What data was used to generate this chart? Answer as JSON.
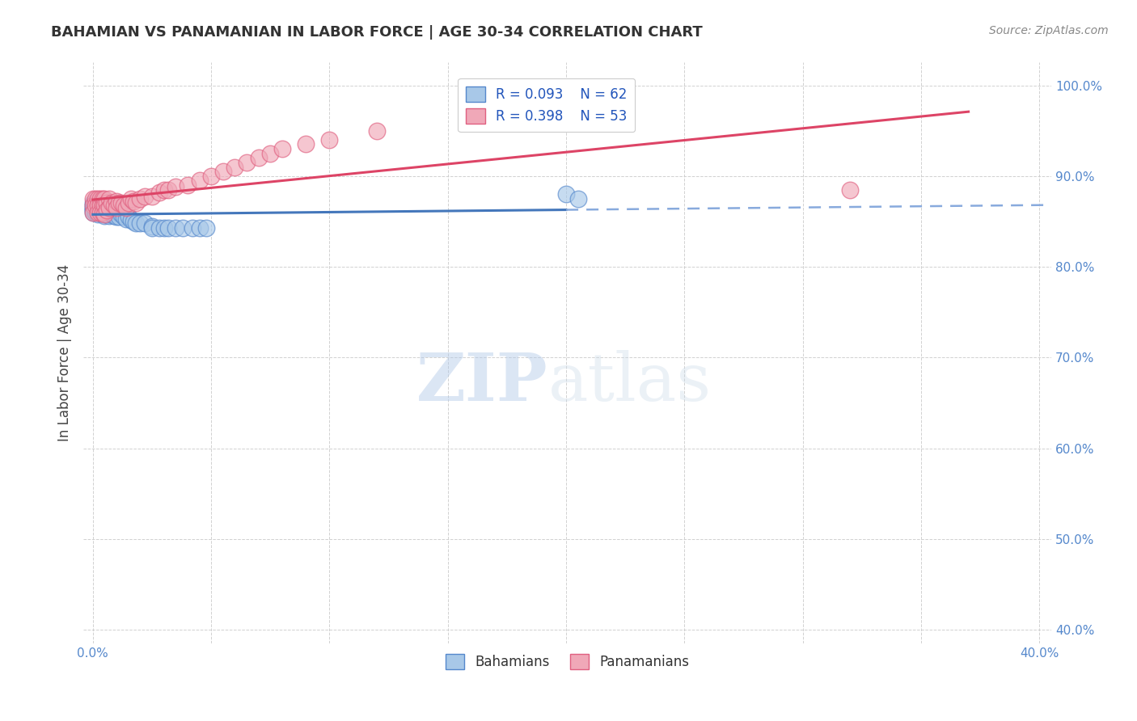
{
  "title": "BAHAMIAN VS PANAMANIAN IN LABOR FORCE | AGE 30-34 CORRELATION CHART",
  "source": "Source: ZipAtlas.com",
  "ylabel": "In Labor Force | Age 30-34",
  "xlim": [
    -0.004,
    0.405
  ],
  "ylim": [
    0.385,
    1.025
  ],
  "xtick_vals": [
    0.0,
    0.05,
    0.1,
    0.15,
    0.2,
    0.25,
    0.3,
    0.35,
    0.4
  ],
  "ytick_vals": [
    0.4,
    0.5,
    0.6,
    0.7,
    0.8,
    0.9,
    1.0
  ],
  "bahamian_color": "#a8c8e8",
  "panamanian_color": "#f0a8b8",
  "bahamian_edge": "#5588cc",
  "panamanian_edge": "#e06080",
  "trend_blue": "#4477bb",
  "trend_pink": "#dd4466",
  "trend_blue_dash": "#88aadd",
  "R_bahamian": 0.093,
  "N_bahamian": 62,
  "R_panamanian": 0.398,
  "N_panamanian": 53,
  "watermark_zip": "ZIP",
  "watermark_atlas": "atlas",
  "tick_color": "#5588cc",
  "bahamian_x": [
    0.0,
    0.0,
    0.0,
    0.0,
    0.0,
    0.0,
    0.001,
    0.001,
    0.001,
    0.001,
    0.002,
    0.002,
    0.002,
    0.002,
    0.002,
    0.003,
    0.003,
    0.003,
    0.003,
    0.004,
    0.004,
    0.004,
    0.005,
    0.005,
    0.005,
    0.005,
    0.005,
    0.006,
    0.006,
    0.006,
    0.007,
    0.007,
    0.007,
    0.008,
    0.008,
    0.009,
    0.009,
    0.01,
    0.01,
    0.011,
    0.011,
    0.012,
    0.013,
    0.014,
    0.015,
    0.016,
    0.017,
    0.018,
    0.02,
    0.022,
    0.025,
    0.025,
    0.028,
    0.03,
    0.032,
    0.035,
    0.038,
    0.042,
    0.045,
    0.048,
    0.2,
    0.205
  ],
  "bahamian_y": [
    0.87,
    0.868,
    0.865,
    0.863,
    0.862,
    0.86,
    0.87,
    0.866,
    0.863,
    0.86,
    0.868,
    0.865,
    0.862,
    0.86,
    0.858,
    0.87,
    0.866,
    0.863,
    0.86,
    0.866,
    0.862,
    0.858,
    0.868,
    0.865,
    0.862,
    0.86,
    0.856,
    0.865,
    0.862,
    0.858,
    0.863,
    0.86,
    0.856,
    0.862,
    0.858,
    0.86,
    0.856,
    0.862,
    0.855,
    0.86,
    0.855,
    0.858,
    0.855,
    0.853,
    0.855,
    0.852,
    0.85,
    0.848,
    0.848,
    0.848,
    0.845,
    0.843,
    0.843,
    0.843,
    0.843,
    0.843,
    0.843,
    0.843,
    0.843,
    0.843,
    0.88,
    0.875
  ],
  "panamanian_x": [
    0.0,
    0.0,
    0.0,
    0.001,
    0.001,
    0.002,
    0.002,
    0.002,
    0.003,
    0.003,
    0.003,
    0.004,
    0.004,
    0.004,
    0.005,
    0.005,
    0.005,
    0.006,
    0.006,
    0.007,
    0.007,
    0.008,
    0.009,
    0.01,
    0.01,
    0.011,
    0.012,
    0.013,
    0.014,
    0.015,
    0.016,
    0.017,
    0.018,
    0.02,
    0.022,
    0.025,
    0.028,
    0.03,
    0.032,
    0.035,
    0.04,
    0.045,
    0.05,
    0.055,
    0.06,
    0.065,
    0.07,
    0.075,
    0.08,
    0.09,
    0.1,
    0.12,
    0.32
  ],
  "panamanian_y": [
    0.875,
    0.868,
    0.86,
    0.875,
    0.868,
    0.875,
    0.868,
    0.86,
    0.875,
    0.868,
    0.86,
    0.875,
    0.868,
    0.86,
    0.875,
    0.868,
    0.858,
    0.87,
    0.862,
    0.875,
    0.865,
    0.87,
    0.868,
    0.872,
    0.865,
    0.87,
    0.87,
    0.868,
    0.865,
    0.87,
    0.875,
    0.872,
    0.87,
    0.875,
    0.878,
    0.878,
    0.882,
    0.885,
    0.885,
    0.888,
    0.89,
    0.895,
    0.9,
    0.905,
    0.91,
    0.915,
    0.92,
    0.925,
    0.93,
    0.935,
    0.94,
    0.95,
    0.885
  ]
}
